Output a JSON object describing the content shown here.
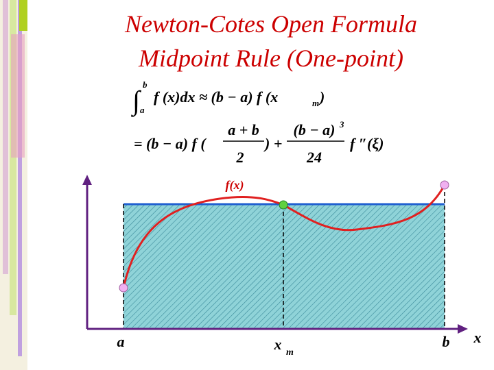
{
  "header": {
    "title_line1": "Newton-Cotes Open Formula",
    "title_line2": "Midpoint Rule (One-point)"
  },
  "formula1": {
    "integral": "∫",
    "upper": "b",
    "lower": "a",
    "body": "f (x)dx ≈ (b − a) f (x",
    "sub": "m",
    "close": ")"
  },
  "formula2": {
    "lead": "= (b − a) f (",
    "frac1_num": "a + b",
    "frac1_den": "2",
    "plus": ") +",
    "frac2_num": "(b − a)",
    "frac2_exp": "3",
    "frac2_den": "24",
    "tail": "f ″(ξ)"
  },
  "graph": {
    "curve_label": "f(x)",
    "a": "a",
    "xm": "x",
    "xm_sub": "m",
    "b": "b",
    "x_axis": "x"
  }
}
